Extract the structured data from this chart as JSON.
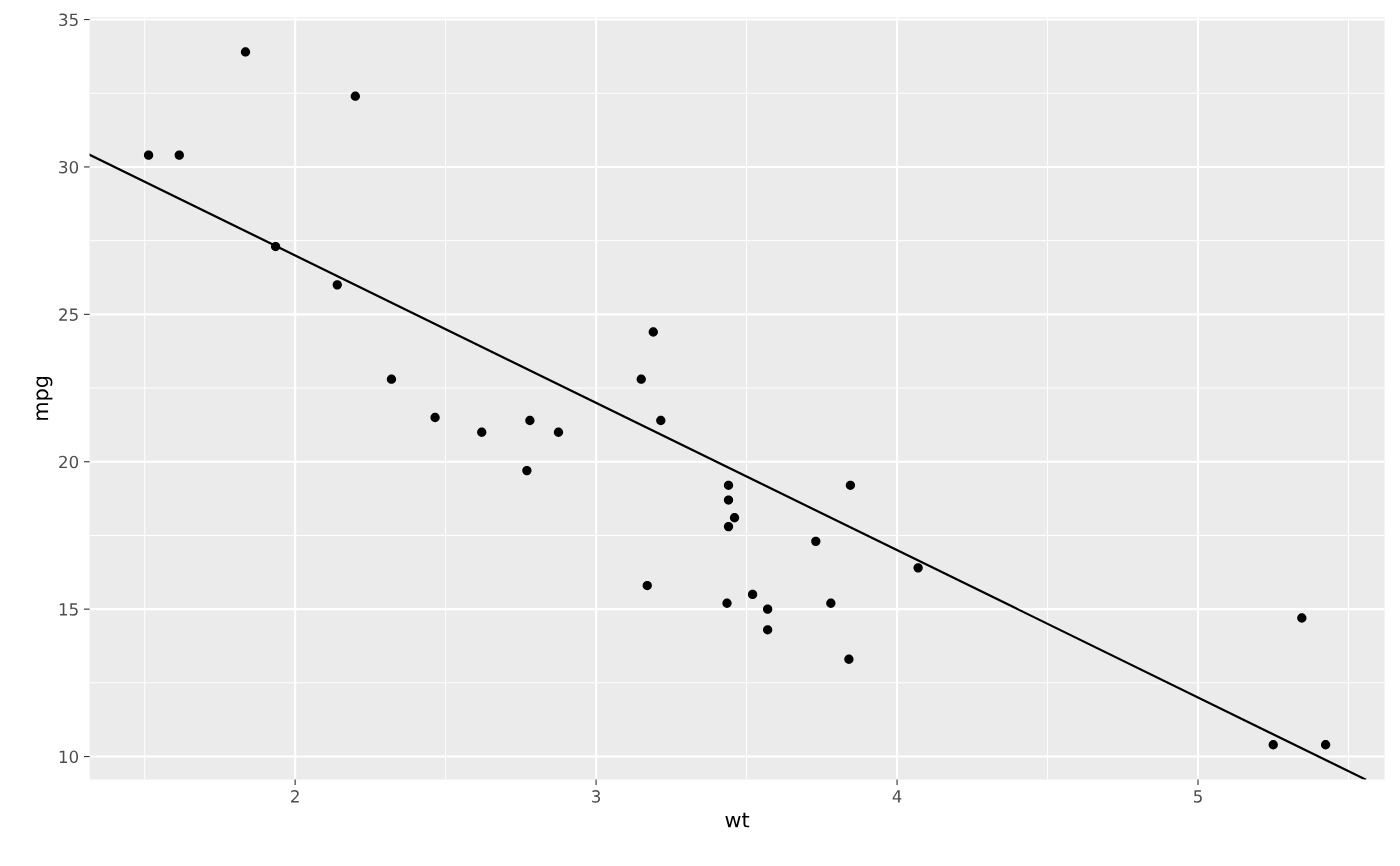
{
  "chart_data": {
    "type": "scatter",
    "xlabel": "wt",
    "ylabel": "mpg",
    "xlim": [
      1.317,
      5.62
    ],
    "ylim": [
      9.225,
      35.075
    ],
    "xticks": [
      2,
      3,
      4,
      5
    ],
    "yticks": [
      10,
      15,
      20,
      25,
      30,
      35
    ],
    "grid": true,
    "series": [
      {
        "marker": "circle",
        "color": "#000000",
        "x": [
          2.62,
          2.875,
          2.32,
          3.215,
          3.44,
          3.46,
          3.57,
          3.19,
          3.15,
          3.44,
          3.44,
          4.07,
          3.73,
          3.78,
          5.25,
          5.424,
          5.345,
          2.2,
          1.615,
          1.835,
          2.465,
          3.52,
          3.435,
          3.84,
          3.845,
          1.935,
          2.14,
          1.513,
          3.17,
          2.77,
          3.57,
          2.78
        ],
        "values": [
          21.0,
          21.0,
          22.8,
          21.4,
          18.7,
          18.1,
          14.3,
          24.4,
          22.8,
          19.2,
          17.8,
          16.4,
          17.3,
          15.2,
          10.4,
          10.4,
          14.7,
          32.4,
          30.4,
          33.9,
          21.5,
          15.5,
          15.2,
          13.3,
          19.2,
          27.3,
          26.0,
          30.4,
          15.8,
          19.7,
          15.0,
          21.4
        ]
      },
      {
        "type": "line",
        "marker": "none",
        "color": "#000000",
        "x": [
          1.317,
          5.555
        ],
        "values": [
          30.41,
          9.23
        ]
      }
    ]
  }
}
